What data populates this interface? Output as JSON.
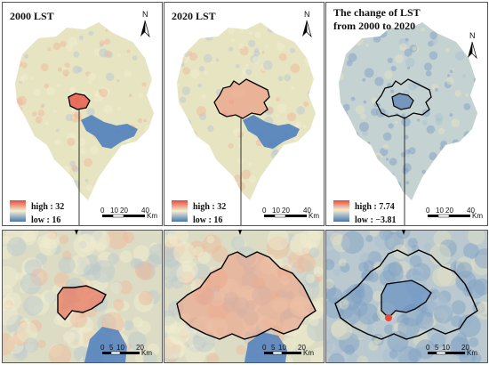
{
  "panels": [
    {
      "title": "2000 LST",
      "legend_high": "high : 32",
      "legend_low": "low : 16",
      "scale": [
        "0",
        "10",
        "20",
        "40"
      ],
      "unit": "Km",
      "north": "N",
      "base_color": "#e9e6c2",
      "palette": "warm"
    },
    {
      "title": "2020 LST",
      "legend_high": "high : 32",
      "legend_low": "low : 16",
      "scale": [
        "0",
        "10",
        "20",
        "40"
      ],
      "unit": "Km",
      "north": "N",
      "base_color": "#e9e6c2",
      "palette": "warm"
    },
    {
      "title_line1": "The change of LST",
      "title_line2": "from 2000 to 2020",
      "legend_high": "high : 7.74",
      "legend_low": "low : −3.81",
      "scale": [
        "0",
        "10",
        "20",
        "40"
      ],
      "unit": "Km",
      "north": "N",
      "base_color": "#c9d3cf",
      "palette": "cool"
    }
  ],
  "zooms": [
    {
      "scale": [
        "0",
        "5",
        "10",
        "20"
      ],
      "unit": "Km"
    },
    {
      "scale": [
        "0",
        "5",
        "10",
        "20"
      ],
      "unit": "Km"
    },
    {
      "scale": [
        "0",
        "5",
        "10",
        "20"
      ],
      "unit": "Km"
    }
  ],
  "colors": {
    "high": "#e8483a",
    "low": "#4a78b8",
    "water": "#4f7fbd",
    "outline": "#000000",
    "mid": "#ece9c6"
  }
}
